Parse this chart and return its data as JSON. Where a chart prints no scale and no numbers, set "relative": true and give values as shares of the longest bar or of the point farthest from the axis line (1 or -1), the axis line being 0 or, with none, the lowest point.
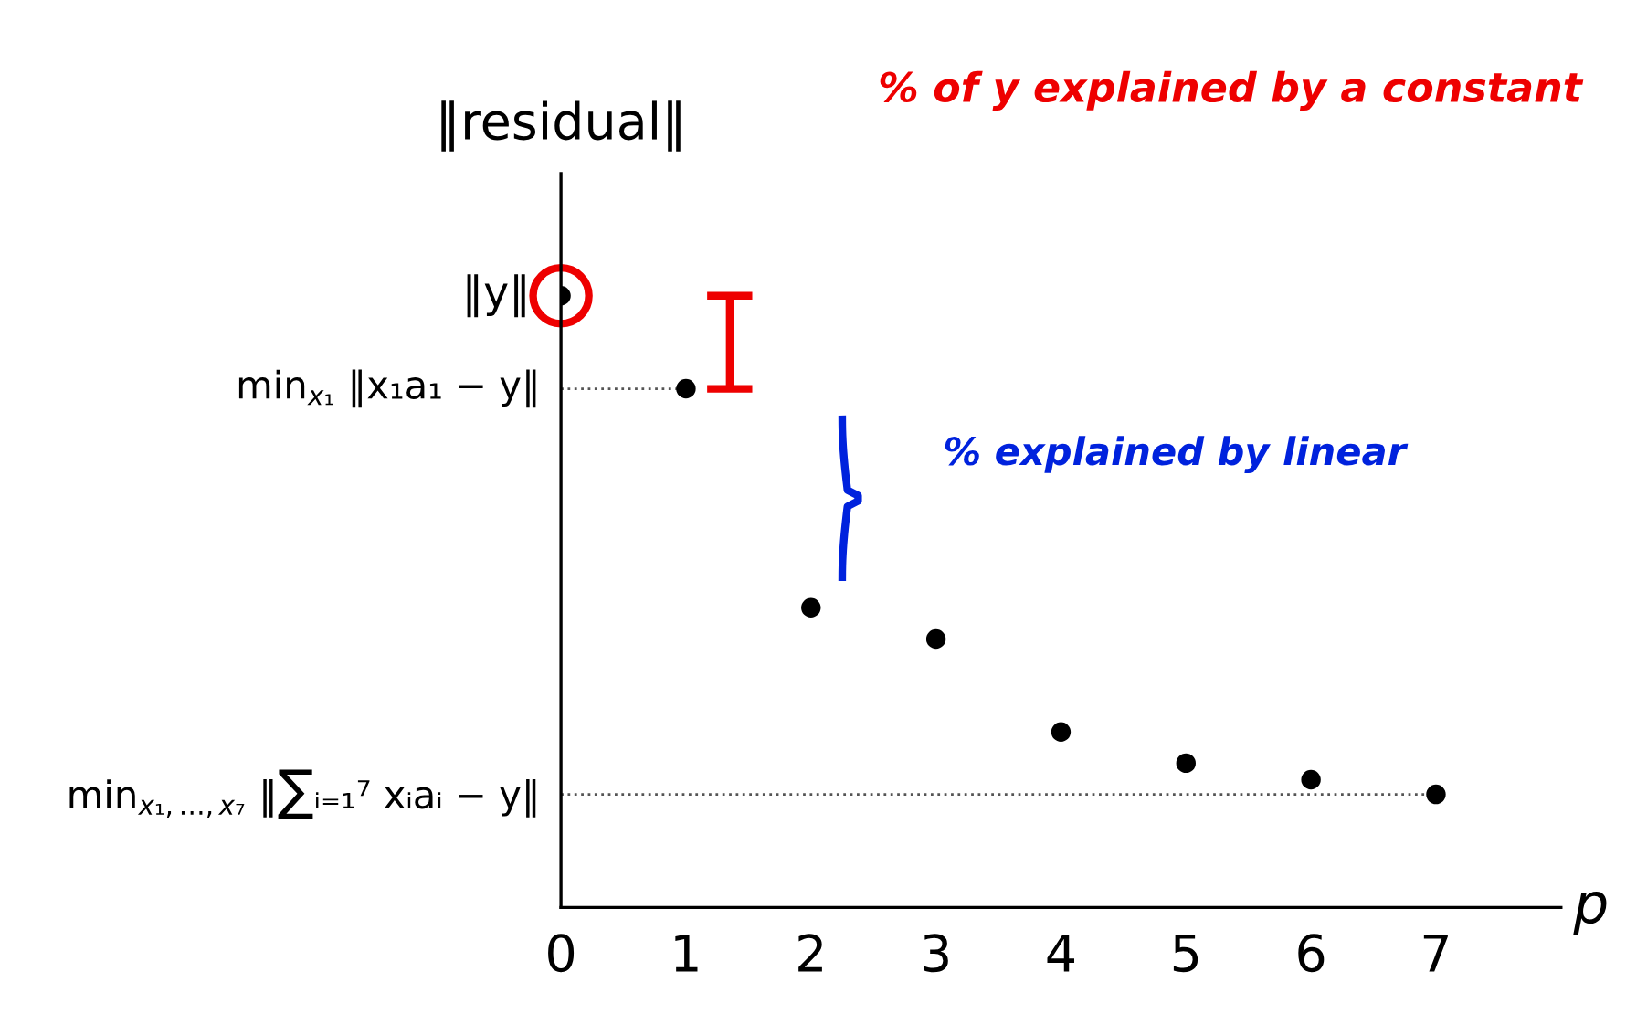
{
  "chart_data": {
    "type": "scatter",
    "relative": true,
    "ylabel": "‖residual‖",
    "xlabel": "p",
    "x": [
      0,
      1,
      2,
      3,
      4,
      5,
      6,
      7
    ],
    "values": [
      1,
      0.848,
      0.49,
      0.439,
      0.287,
      0.236,
      0.209,
      0.185
    ],
    "color": "#000000",
    "marker": "circle",
    "ref_lines": [
      {
        "axis": "y",
        "value": 0.848,
        "line_style": "dotted",
        "label": "min$_{x₁}$ ‖x₁a₁ − y‖"
      },
      {
        "axis": "y",
        "value": 0.185,
        "line_style": "dotted",
        "label": "min$_{x₁,…,x₇}$ ‖∑ᵢ₌₁⁷ xᵢaᵢ − y‖"
      }
    ],
    "xlim": [
      0,
      8
    ],
    "xticks": [
      0,
      1,
      2,
      3,
      4,
      5,
      6,
      7
    ],
    "grid": false,
    "legend": false,
    "annotations": [
      {
        "text": "‖y‖",
        "x": 0,
        "y": 1
      },
      "% of y explained by a constant",
      "% explained by linear"
    ]
  }
}
